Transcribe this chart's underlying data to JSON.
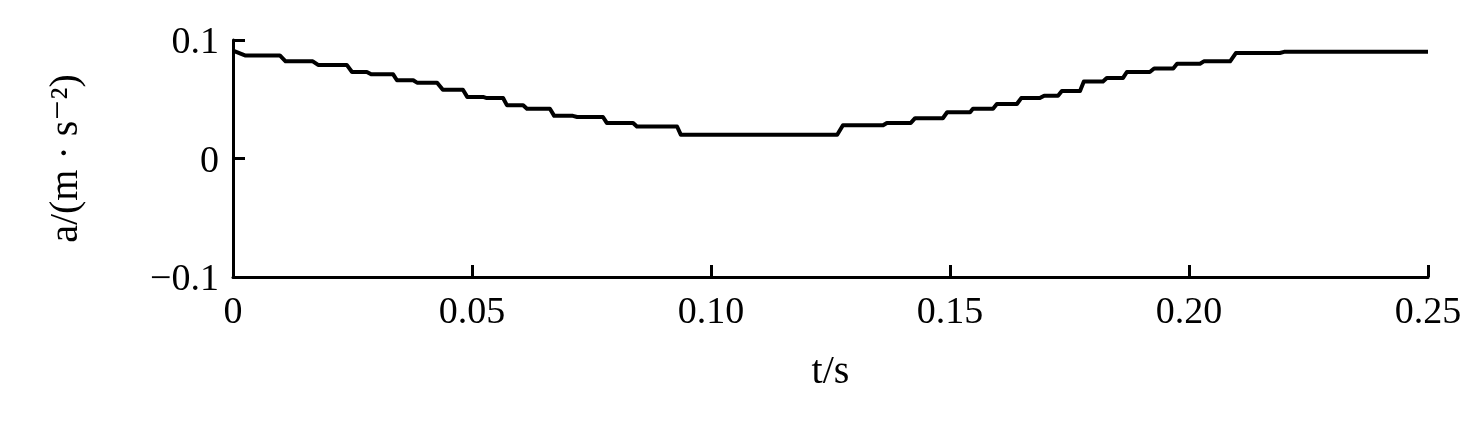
{
  "chart_data": {
    "type": "line",
    "xlabel": "t/s",
    "ylabel": "a/(m · s⁻²)",
    "xlim": [
      0,
      0.25
    ],
    "xticks": [
      0,
      0.05,
      {
        "value": 0.1,
        "label": "0.10"
      },
      0.15,
      {
        "value": 0.2,
        "label": "0.20"
      },
      0.25
    ],
    "ylim": [
      -0.1,
      0.1
    ],
    "yticks": [
      {
        "value": -0.1,
        "label": "−0.1"
      },
      0,
      0.1
    ],
    "grid": false,
    "marker": "none",
    "line_style": "solid",
    "series": [
      {
        "color": "#000000",
        "x": [
          0,
          0.0025,
          0.0098,
          0.011,
          0.0167,
          0.0178,
          0.0238,
          0.0249,
          0.028,
          0.0289,
          0.0335,
          0.0343,
          0.0377,
          0.0385,
          0.0427,
          0.0439,
          0.0481,
          0.049,
          0.0523,
          0.0531,
          0.0565,
          0.0573,
          0.0607,
          0.0615,
          0.0663,
          0.0672,
          0.0711,
          0.072,
          0.0774,
          0.0782,
          0.0837,
          0.0845,
          0.0929,
          0.0937,
          0.1264,
          0.1276,
          0.136,
          0.1368,
          0.1418,
          0.1427,
          0.1485,
          0.1494,
          0.1542,
          0.1548,
          0.159,
          0.1598,
          0.164,
          0.1649,
          0.1688,
          0.1697,
          0.1726,
          0.1734,
          0.1772,
          0.178,
          0.182,
          0.1828,
          0.1862,
          0.187,
          0.1918,
          0.1927,
          0.1967,
          0.1975,
          0.2023,
          0.2031,
          0.2086,
          0.2098,
          0.219,
          0.2199,
          0.25
        ],
        "values": [
          0.091,
          0.087,
          0.087,
          0.082,
          0.082,
          0.079,
          0.079,
          0.073,
          0.073,
          0.071,
          0.071,
          0.066,
          0.066,
          0.064,
          0.064,
          0.058,
          0.058,
          0.052,
          0.052,
          0.051,
          0.051,
          0.045,
          0.045,
          0.042,
          0.042,
          0.036,
          0.036,
          0.035,
          0.035,
          0.03,
          0.03,
          0.027,
          0.027,
          0.02,
          0.02,
          0.028,
          0.028,
          0.03,
          0.03,
          0.034,
          0.034,
          0.039,
          0.039,
          0.042,
          0.042,
          0.046,
          0.046,
          0.051,
          0.051,
          0.053,
          0.053,
          0.057,
          0.057,
          0.065,
          0.065,
          0.068,
          0.068,
          0.073,
          0.073,
          0.076,
          0.076,
          0.08,
          0.08,
          0.082,
          0.082,
          0.089,
          0.089,
          0.09,
          0.09
        ]
      }
    ]
  }
}
